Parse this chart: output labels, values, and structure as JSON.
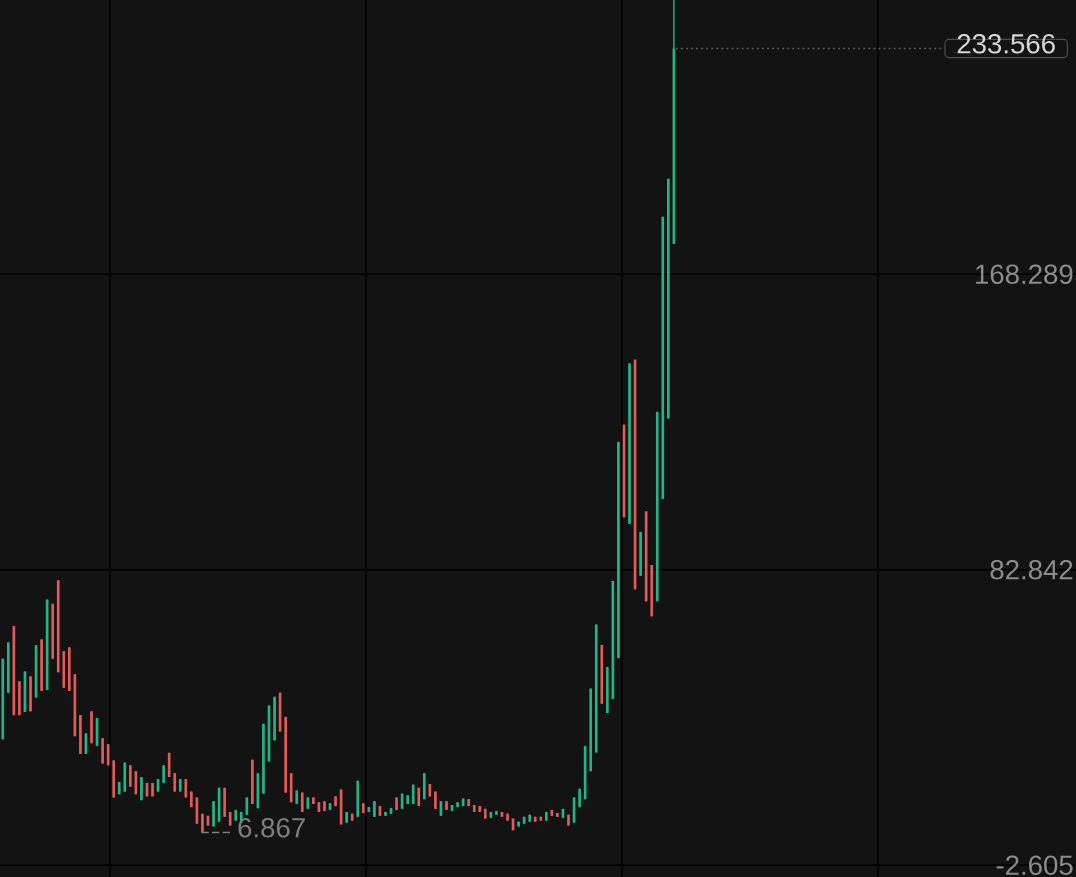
{
  "chart_data": {
    "type": "candlestick",
    "categories": [
      null,
      null,
      null,
      null,
      null,
      null,
      null,
      null,
      null,
      null,
      null,
      null,
      null,
      null,
      null,
      null,
      null,
      null,
      null,
      null,
      null,
      null,
      null,
      null,
      null,
      null,
      null,
      null,
      null,
      null,
      null,
      null,
      null,
      null,
      null,
      null,
      null,
      null,
      null,
      null,
      null,
      null,
      null,
      null,
      null,
      null,
      null,
      null,
      null,
      null,
      null,
      null,
      null,
      null,
      null,
      null,
      null,
      null,
      null,
      null,
      null,
      null,
      null,
      null,
      null,
      null,
      null,
      null,
      null,
      null,
      null,
      null,
      null,
      null,
      null,
      null,
      null,
      null,
      null,
      null,
      null,
      null,
      null,
      null,
      null,
      null,
      null,
      null,
      null,
      null,
      null,
      null,
      null,
      null,
      null,
      null,
      null,
      null,
      null,
      null,
      null,
      null,
      null,
      null,
      null,
      null,
      null,
      null,
      null,
      null,
      null,
      null,
      null,
      null,
      null,
      null,
      null,
      null,
      null,
      null,
      null,
      null,
      null,
      null,
      null,
      null,
      null,
      null,
      null,
      null,
      null,
      null,
      null,
      null,
      null,
      null,
      null,
      null,
      null,
      null,
      null,
      null,
      null,
      null,
      null,
      null,
      null,
      null,
      null,
      null,
      null,
      null,
      null,
      null,
      null,
      null,
      null,
      null,
      null,
      null,
      null,
      null,
      null,
      null,
      null,
      null,
      null,
      null,
      null,
      null,
      null,
      null,
      null,
      null,
      null,
      null,
      null,
      null,
      null,
      null,
      null,
      null,
      null,
      null,
      null,
      null,
      null,
      null,
      null,
      null,
      null,
      null,
      null,
      null
    ],
    "ohlc": [
      [
        33.8,
        57.1,
        33.8,
        57.1
      ],
      [
        47.3,
        61.8,
        47.3,
        61.8
      ],
      [
        66.6,
        66.6,
        40.8,
        40.8
      ],
      [
        50.6,
        50.6,
        40.8,
        40.8
      ],
      [
        41.7,
        53.4,
        41.7,
        53.4
      ],
      [
        52.0,
        52.0,
        41.9,
        41.9
      ],
      [
        45.9,
        61.0,
        45.9,
        61.0
      ],
      [
        62.7,
        62.7,
        47.8,
        47.8
      ],
      [
        48.1,
        74.2,
        48.1,
        74.2
      ],
      [
        73.0,
        73.0,
        57.1,
        57.1
      ],
      [
        79.8,
        79.8,
        53.2,
        53.2
      ],
      [
        59.3,
        59.3,
        48.7,
        48.7
      ],
      [
        60.4,
        60.4,
        47.8,
        47.8
      ],
      [
        52.6,
        52.6,
        34.7,
        34.7
      ],
      [
        40.8,
        40.8,
        29.6,
        29.6
      ],
      [
        29.6,
        35.5,
        29.6,
        35.5
      ],
      [
        41.9,
        41.9,
        32.7,
        32.7
      ],
      [
        31.9,
        40.0,
        31.9,
        40.0
      ],
      [
        34.1,
        34.1,
        26.8,
        26.8
      ],
      [
        32.4,
        32.4,
        26.3,
        26.3
      ],
      [
        27.7,
        27.7,
        17.0,
        17.0
      ],
      [
        17.9,
        21.5,
        17.9,
        21.5
      ],
      [
        18.7,
        27.1,
        18.7,
        27.1
      ],
      [
        26.3,
        26.3,
        20.1,
        20.1
      ],
      [
        24.6,
        24.6,
        17.9,
        17.9
      ],
      [
        16.2,
        22.9,
        16.2,
        22.9
      ],
      [
        21.2,
        21.2,
        17.3,
        17.3
      ],
      [
        21.2,
        21.2,
        17.3,
        17.3
      ],
      [
        18.7,
        22.3,
        18.7,
        22.3
      ],
      [
        21.2,
        26.3,
        21.2,
        26.3
      ],
      [
        29.9,
        29.9,
        22.9,
        22.9
      ],
      [
        24.0,
        24.0,
        18.7,
        18.7
      ],
      [
        18.7,
        22.3,
        18.7,
        22.3
      ],
      [
        22.3,
        22.3,
        17.0,
        17.0
      ],
      [
        18.7,
        18.7,
        14.2,
        14.2
      ],
      [
        17.0,
        17.0,
        9.4,
        9.4
      ],
      [
        12.3,
        12.3,
        6.867,
        6.867
      ],
      [
        11.7,
        11.7,
        8.9,
        8.9
      ],
      [
        8.6,
        15.9,
        8.6,
        15.9
      ],
      [
        10.0,
        19.8,
        10.0,
        19.8
      ],
      [
        19.8,
        19.8,
        11.4,
        11.4
      ],
      [
        12.8,
        12.8,
        8.9,
        8.9
      ],
      [
        10.3,
        13.4,
        10.3,
        13.4
      ],
      [
        9.7,
        12.8,
        9.7,
        12.8
      ],
      [
        12.0,
        17.0,
        12.0,
        17.0
      ],
      [
        27.9,
        27.9,
        15.1,
        15.1
      ],
      [
        13.9,
        24.0,
        13.9,
        24.0
      ],
      [
        18.1,
        38.3,
        18.1,
        38.3
      ],
      [
        27.4,
        43.6,
        27.4,
        43.6
      ],
      [
        33.5,
        46.1,
        33.5,
        46.1
      ],
      [
        47.3,
        47.3,
        36.1,
        36.1
      ],
      [
        40.3,
        40.3,
        18.4,
        18.4
      ],
      [
        24.0,
        24.0,
        15.6,
        15.6
      ],
      [
        15.1,
        19.0,
        15.1,
        19.0
      ],
      [
        18.4,
        18.4,
        12.8,
        12.8
      ],
      [
        13.7,
        17.0,
        13.7,
        17.0
      ],
      [
        17.0,
        17.0,
        15.1,
        15.1
      ],
      [
        15.6,
        15.6,
        12.8,
        12.8
      ],
      [
        15.9,
        15.9,
        13.1,
        13.1
      ],
      [
        13.4,
        15.3,
        13.4,
        15.3
      ],
      [
        17.3,
        17.3,
        14.5,
        14.5
      ],
      [
        19.3,
        19.3,
        9.2,
        9.2
      ],
      [
        9.7,
        12.8,
        9.7,
        12.8
      ],
      [
        12.3,
        12.3,
        10.3,
        10.3
      ],
      [
        11.4,
        21.8,
        11.4,
        21.8
      ],
      [
        15.3,
        15.3,
        12.5,
        12.5
      ],
      [
        12.8,
        14.2,
        12.8,
        14.2
      ],
      [
        11.4,
        15.9,
        11.4,
        15.9
      ],
      [
        14.5,
        14.5,
        11.7,
        11.7
      ],
      [
        11.7,
        12.8,
        11.7,
        12.8
      ],
      [
        12.3,
        13.9,
        12.3,
        13.9
      ],
      [
        17.0,
        17.0,
        13.4,
        13.4
      ],
      [
        13.7,
        18.1,
        13.7,
        18.1
      ],
      [
        15.1,
        17.6,
        15.1,
        17.6
      ],
      [
        15.1,
        20.7,
        15.1,
        20.7
      ],
      [
        19.8,
        19.8,
        14.5,
        14.5
      ],
      [
        16.5,
        24.0,
        16.5,
        24.0
      ],
      [
        20.9,
        20.9,
        17.3,
        17.3
      ],
      [
        18.7,
        18.7,
        13.7,
        13.7
      ],
      [
        11.7,
        15.9,
        11.7,
        15.9
      ],
      [
        15.9,
        15.9,
        13.4,
        13.4
      ],
      [
        13.1,
        14.8,
        13.1,
        14.8
      ],
      [
        14.2,
        15.6,
        14.2,
        15.6
      ],
      [
        14.5,
        16.7,
        14.5,
        16.7
      ],
      [
        16.5,
        16.5,
        14.5,
        14.5
      ],
      [
        14.8,
        14.8,
        12.8,
        12.8
      ],
      [
        14.5,
        14.5,
        12.8,
        12.8
      ],
      [
        13.7,
        13.7,
        10.9,
        10.9
      ],
      [
        11.1,
        12.8,
        11.1,
        12.8
      ],
      [
        12.0,
        13.1,
        12.0,
        13.1
      ],
      [
        12.8,
        12.8,
        11.4,
        11.4
      ],
      [
        12.3,
        12.3,
        10.3,
        10.3
      ],
      [
        10.9,
        10.9,
        7.5,
        7.5
      ],
      [
        8.6,
        10.0,
        8.6,
        10.0
      ],
      [
        9.4,
        11.4,
        9.4,
        11.4
      ],
      [
        10.0,
        12.0,
        10.0,
        12.0
      ],
      [
        11.4,
        11.4,
        10.0,
        10.0
      ],
      [
        11.4,
        11.4,
        10.3,
        10.3
      ],
      [
        10.3,
        12.8,
        10.3,
        12.8
      ],
      [
        13.4,
        13.4,
        11.7,
        11.7
      ],
      [
        12.5,
        12.5,
        11.4,
        11.4
      ],
      [
        11.1,
        13.7,
        11.1,
        13.7
      ],
      [
        12.0,
        12.0,
        8.9,
        8.9
      ],
      [
        9.7,
        17.0,
        9.7,
        17.0
      ],
      [
        14.2,
        19.5,
        14.2,
        19.5
      ],
      [
        16.5,
        31.9,
        16.5,
        31.9
      ],
      [
        24.6,
        48.5,
        24.6,
        48.5
      ],
      [
        30.0,
        67.0,
        30.0,
        67.0
      ],
      [
        61.1,
        61.1,
        44.1,
        44.1
      ],
      [
        41.4,
        54.7,
        41.4,
        54.7
      ],
      [
        45.5,
        79.6,
        45.5,
        79.6
      ],
      [
        57.3,
        119.8,
        57.3,
        119.8
      ],
      [
        124.8,
        124.8,
        98.0,
        98.0
      ],
      [
        96.1,
        142.5,
        96.1,
        142.5
      ],
      [
        143.6,
        143.6,
        77.2,
        77.2
      ],
      [
        81.1,
        93.8,
        81.1,
        93.8
      ],
      [
        99.7,
        99.7,
        73.7,
        73.7
      ],
      [
        84.2,
        84.2,
        69.4,
        69.4
      ],
      [
        73.7,
        128.5,
        73.7,
        128.5
      ],
      [
        103.3,
        184.9,
        103.3,
        184.9
      ],
      [
        126.6,
        195.9,
        126.6,
        195.9
      ],
      [
        177.1,
        247.6,
        177.1,
        233.566
      ],
      null,
      null,
      null,
      null,
      null,
      null,
      null,
      null,
      null,
      null,
      null,
      null,
      null,
      null,
      null,
      null,
      null,
      null,
      null,
      null,
      null,
      null,
      null,
      null,
      null,
      null,
      null,
      null,
      null,
      null,
      null,
      null,
      null,
      null,
      null,
      null,
      null,
      null,
      null,
      null,
      null,
      null,
      null,
      null,
      null,
      null,
      null,
      null,
      null,
      null,
      null,
      null,
      null,
      null,
      null,
      null,
      null,
      null,
      null,
      null,
      null,
      null,
      null,
      null,
      null,
      null,
      null,
      null,
      null,
      null,
      null,
      null
    ],
    "colors": [
      "#22b587",
      "#22b587",
      "#e35a5a",
      "#e35a5a",
      "#22b587",
      "#e35a5a",
      "#22b587",
      "#e35a5a",
      "#22b587",
      "#e35a5a",
      "#e35a5a",
      "#e35a5a",
      "#e35a5a",
      "#e35a5a",
      "#e35a5a",
      "#22b587",
      "#e35a5a",
      "#22b587",
      "#e35a5a",
      "#e35a5a",
      "#e35a5a",
      "#22b587",
      "#22b587",
      "#e35a5a",
      "#e35a5a",
      "#22b587",
      "#e35a5a",
      "#e35a5a",
      "#22b587",
      "#22b587",
      "#e35a5a",
      "#e35a5a",
      "#22b587",
      "#e35a5a",
      "#e35a5a",
      "#e35a5a",
      "#e35a5a",
      "#e35a5a",
      "#22b587",
      "#22b587",
      "#e35a5a",
      "#e35a5a",
      "#22b587",
      "#22b587",
      "#22b587",
      "#e35a5a",
      "#22b587",
      "#22b587",
      "#22b587",
      "#22b587",
      "#e35a5a",
      "#e35a5a",
      "#e35a5a",
      "#22b587",
      "#e35a5a",
      "#22b587",
      "#e35a5a",
      "#e35a5a",
      "#e35a5a",
      "#22b587",
      "#e35a5a",
      "#e35a5a",
      "#22b587",
      "#e35a5a",
      "#22b587",
      "#e35a5a",
      "#22b587",
      "#22b587",
      "#e35a5a",
      "#22b587",
      "#22b587",
      "#e35a5a",
      "#22b587",
      "#22b587",
      "#22b587",
      "#e35a5a",
      "#22b587",
      "#e35a5a",
      "#e35a5a",
      "#22b587",
      "#e35a5a",
      "#22b587",
      "#22b587",
      "#22b587",
      "#e35a5a",
      "#e35a5a",
      "#e35a5a",
      "#e35a5a",
      "#22b587",
      "#22b587",
      "#e35a5a",
      "#e35a5a",
      "#e35a5a",
      "#22b587",
      "#22b587",
      "#22b587",
      "#e35a5a",
      "#e35a5a",
      "#22b587",
      "#e35a5a",
      "#e35a5a",
      "#22b587",
      "#e35a5a",
      "#22b587",
      "#22b587",
      "#22b587",
      "#22b587",
      "#22b587",
      "#e35a5a",
      "#22b587",
      "#22b587",
      "#22b587",
      "#e35a5a",
      "#22b587",
      "#e35a5a",
      "#22b587",
      "#e35a5a",
      "#e35a5a",
      "#22b587",
      "#22b587",
      "#22b587",
      "#22b587",
      null,
      null,
      null,
      null,
      null,
      null,
      null,
      null,
      null,
      null,
      null,
      null,
      null,
      null,
      null,
      null,
      null,
      null,
      null,
      null,
      null,
      null,
      null,
      null,
      null,
      null,
      null,
      null,
      null,
      null,
      null,
      null,
      null,
      null,
      null,
      null,
      null,
      null,
      null,
      null,
      null,
      null,
      null,
      null,
      null,
      null,
      null,
      null,
      null,
      null,
      null,
      null,
      null,
      null,
      null,
      null,
      null,
      null,
      null,
      null,
      null,
      null,
      null,
      null,
      null,
      null,
      null,
      null,
      null,
      null,
      null,
      null
    ],
    "ylim": [
      -6,
      247.6
    ],
    "yticks": [
      -2.605,
      82.842,
      168.289
    ],
    "tick_labels": "y",
    "grid": true,
    "ref_lines": [
      {
        "axis": "y",
        "value": 233.566,
        "label": "233.566",
        "line_style": "dotted",
        "color": "#5f5f5f"
      }
    ],
    "annotations": [
      "6.867"
    ]
  }
}
